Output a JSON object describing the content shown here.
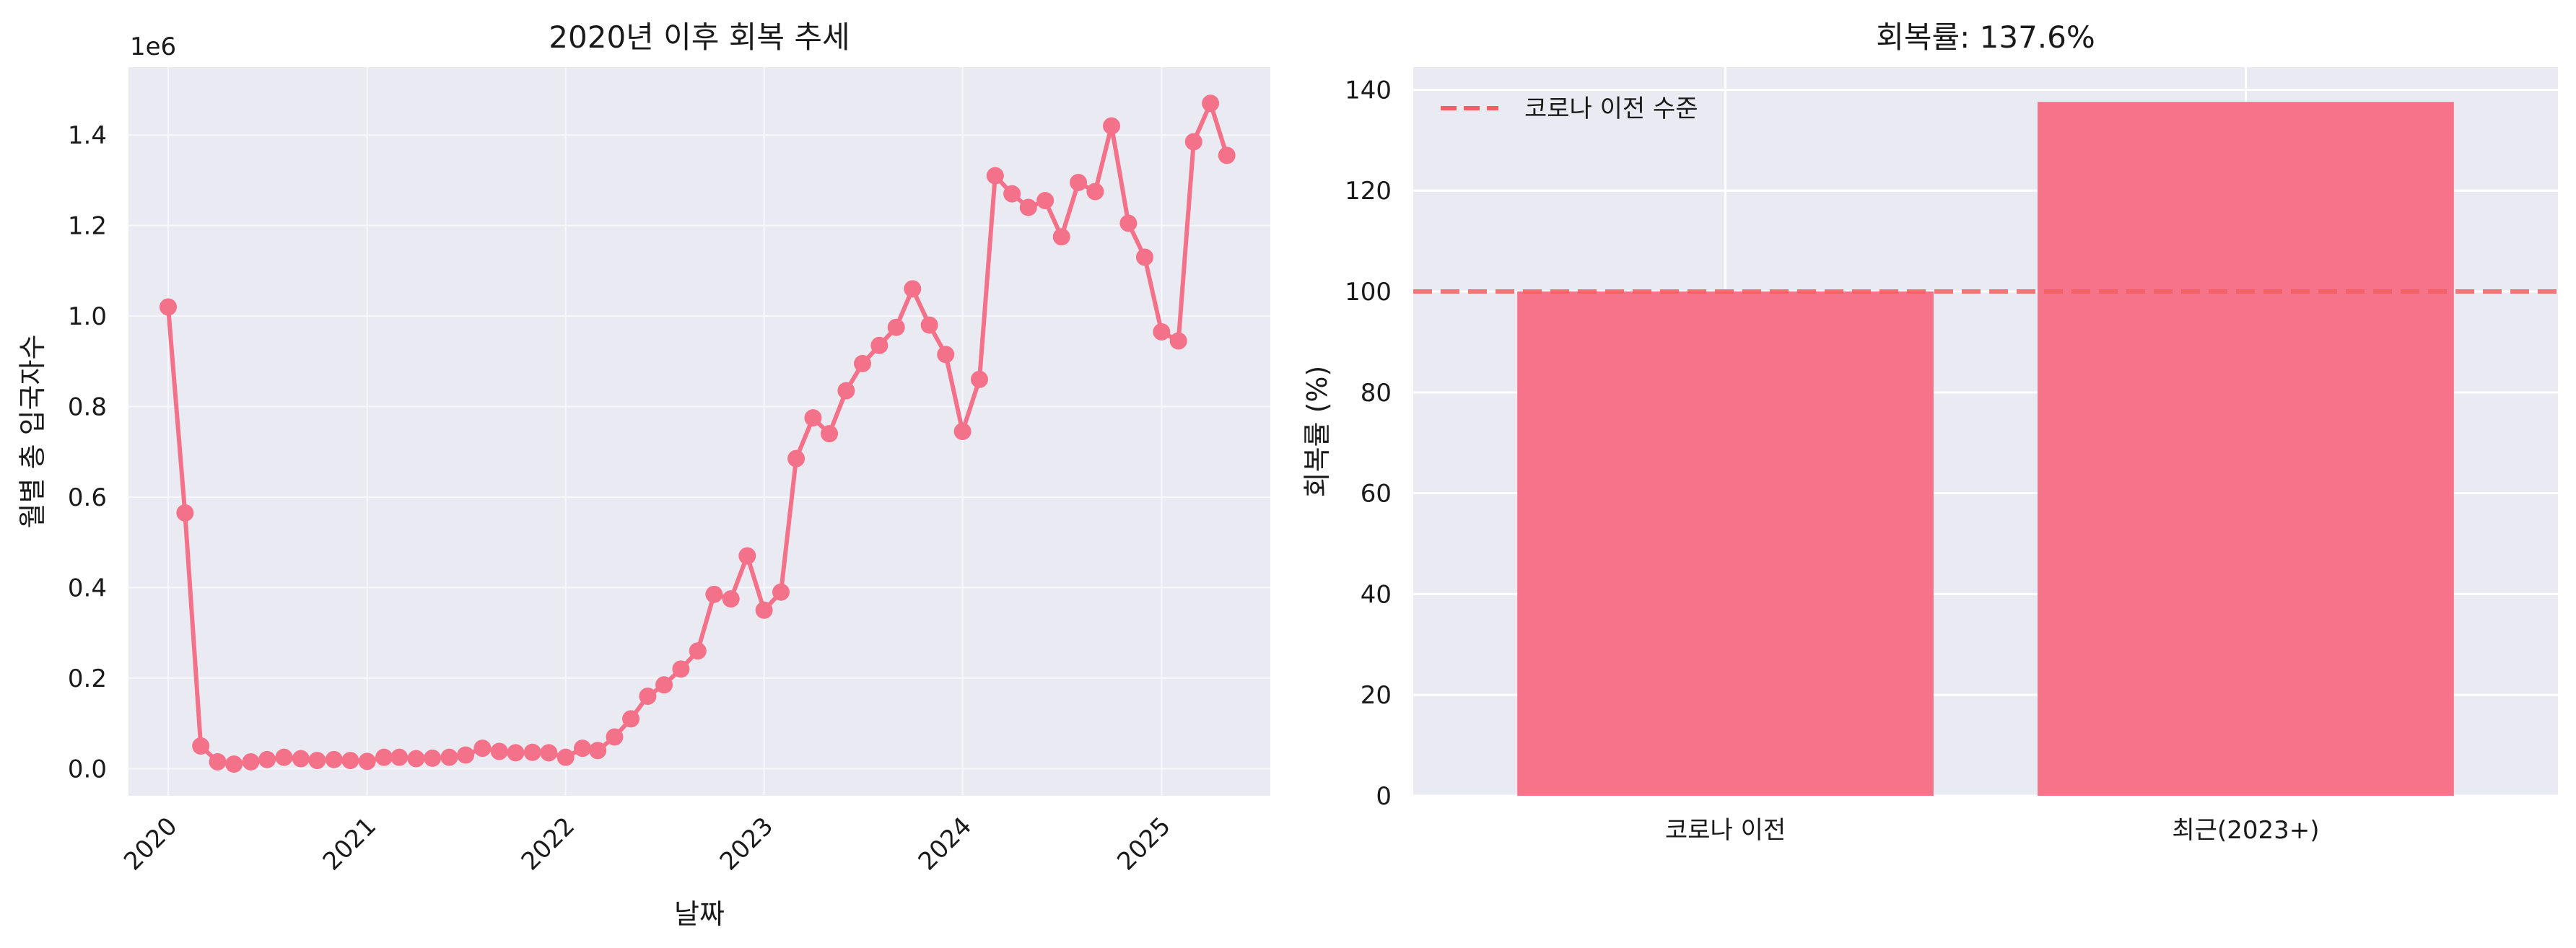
{
  "colors": {
    "series": "#f37189",
    "bar": "#f7738a",
    "reference_line": "#f25f5f",
    "panel_bg": "#eaeaf2"
  },
  "chart_data": [
    {
      "type": "line",
      "title": "2020년 이후 회복 추세",
      "xlabel": "날짜",
      "ylabel": "월별 총 입국자수",
      "y_offset_label": "1e6",
      "y_scale": 1000000,
      "ylim": [
        -0.06,
        1.55
      ],
      "xlim": [
        "2019-10-20",
        "2025-07-20"
      ],
      "x_ticks": [
        "2020",
        "2021",
        "2022",
        "2023",
        "2024",
        "2025"
      ],
      "y_ticks": [
        "0.0",
        "0.2",
        "0.4",
        "0.6",
        "0.8",
        "1.0",
        "1.2",
        "1.4"
      ],
      "grid": true,
      "marker": "circle",
      "series": [
        {
          "x": [
            "2020-01",
            "2020-02",
            "2020-03",
            "2020-04",
            "2020-05",
            "2020-06",
            "2020-07",
            "2020-08",
            "2020-09",
            "2020-10",
            "2020-11",
            "2020-12",
            "2021-01",
            "2021-02",
            "2021-03",
            "2021-04",
            "2021-05",
            "2021-06",
            "2021-07",
            "2021-08",
            "2021-09",
            "2021-10",
            "2021-11",
            "2021-12",
            "2022-01",
            "2022-02",
            "2022-03",
            "2022-04",
            "2022-05",
            "2022-06",
            "2022-07",
            "2022-08",
            "2022-09",
            "2022-10",
            "2022-11",
            "2022-12",
            "2023-01",
            "2023-02",
            "2023-03",
            "2023-04",
            "2023-05",
            "2023-06",
            "2023-07",
            "2023-08",
            "2023-09",
            "2023-10",
            "2023-11",
            "2023-12",
            "2024-01",
            "2024-02",
            "2024-03",
            "2024-04",
            "2024-05",
            "2024-06",
            "2024-07",
            "2024-08",
            "2024-09",
            "2024-10",
            "2024-11",
            "2024-12",
            "2025-01",
            "2025-02",
            "2025-03",
            "2025-04",
            "2025-05"
          ],
          "values": [
            1.02,
            0.565,
            0.05,
            0.015,
            0.01,
            0.015,
            0.02,
            0.025,
            0.022,
            0.018,
            0.02,
            0.018,
            0.016,
            0.025,
            0.025,
            0.022,
            0.023,
            0.025,
            0.03,
            0.045,
            0.038,
            0.035,
            0.036,
            0.035,
            0.025,
            0.045,
            0.04,
            0.07,
            0.11,
            0.16,
            0.185,
            0.22,
            0.26,
            0.385,
            0.375,
            0.47,
            0.35,
            0.39,
            0.685,
            0.775,
            0.74,
            0.835,
            0.895,
            0.935,
            0.975,
            1.06,
            0.98,
            0.915,
            0.745,
            0.86,
            1.31,
            1.27,
            1.24,
            1.255,
            1.175,
            1.295,
            1.275,
            1.42,
            1.205,
            1.13,
            0.965,
            0.945,
            1.385,
            1.47,
            1.355
          ]
        }
      ]
    },
    {
      "type": "bar",
      "title": "회복률: 137.6%",
      "xlabel": "",
      "ylabel": "회복률 (%)",
      "categories": [
        "코로나 이전",
        "최근(2023+)"
      ],
      "values": [
        100,
        137.6
      ],
      "ylim": [
        0,
        144.5
      ],
      "y_ticks": [
        0,
        20,
        40,
        60,
        80,
        100,
        120,
        140
      ],
      "reference_line": {
        "y": 100,
        "label": "코로나 이전 수준",
        "style": "dashed"
      },
      "legend": {
        "placement": "top-left",
        "entries": [
          "코로나 이전 수준"
        ]
      },
      "grid": true
    }
  ]
}
